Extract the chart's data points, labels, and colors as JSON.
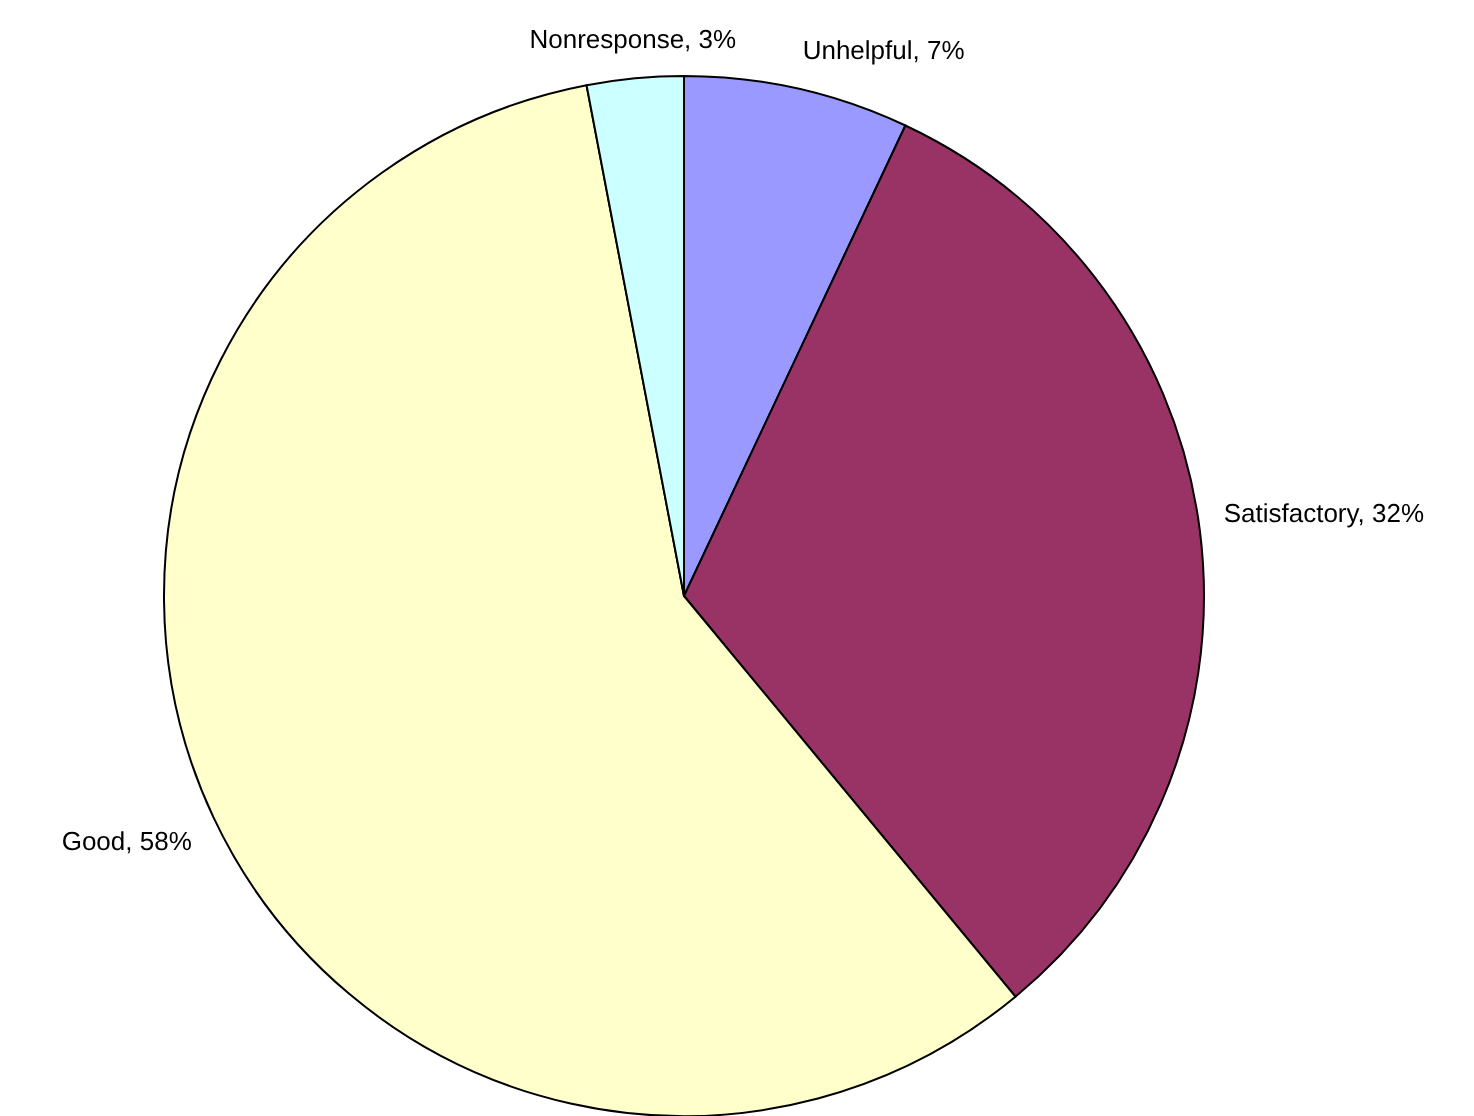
{
  "chart_data": {
    "type": "pie",
    "categories": [
      "Unhelpful",
      "Satisfactory",
      "Good",
      "Nonresponse"
    ],
    "values": [
      7,
      32,
      58,
      3
    ],
    "colors": [
      "#9999ff",
      "#993366",
      "#ffffcc",
      "#ccffff"
    ],
    "value_labels": [
      "7%",
      "32%",
      "58%",
      "3%"
    ]
  }
}
